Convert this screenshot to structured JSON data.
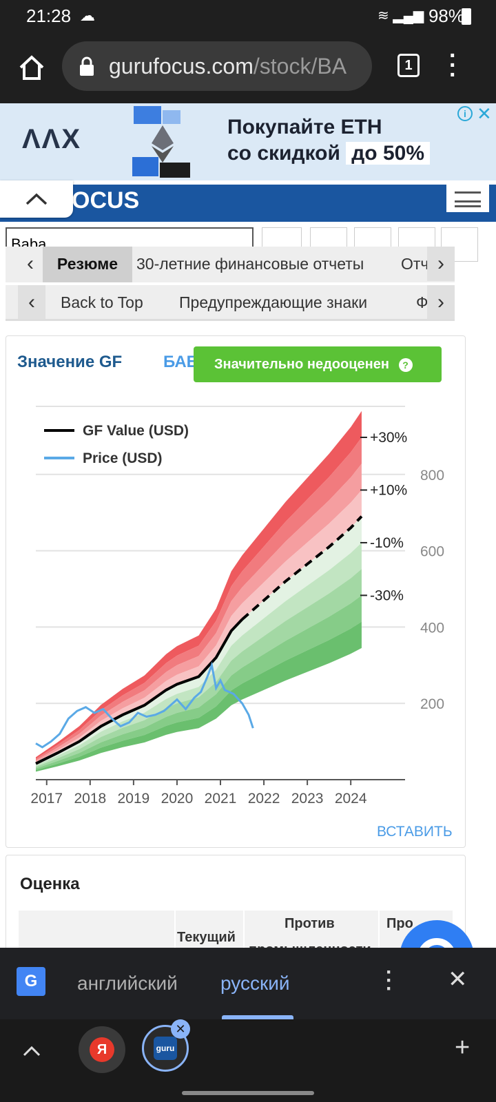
{
  "status": {
    "time": "21:28",
    "battery": "98%"
  },
  "browser": {
    "url_host": "gurufocus.com",
    "url_path": "/stock/BA",
    "tab_count": "1"
  },
  "ad": {
    "brand": "ΛΛX",
    "line1": "Покупайте ETH",
    "line2": "со скидкой",
    "highlight": "до 50%"
  },
  "site": {
    "logo_text": "OCUS",
    "search_value": "Baba"
  },
  "nav_primary": [
    "Резюме",
    "30-летние финансовые отчеты",
    "Отчет о"
  ],
  "nav_secondary": [
    "Back to Top",
    "Предупреждающие знаки",
    "Фина"
  ],
  "gf_card": {
    "title": "Значение GF",
    "ticker": "БАБ",
    "badge": "Значительно недооценен",
    "embed_label": "ВСТАВИТЬ"
  },
  "chart_data": {
    "type": "line",
    "legend": [
      "GF Value (USD)",
      "Price (USD)"
    ],
    "x_ticks": [
      "2017",
      "2018",
      "2019",
      "2020",
      "2021",
      "2022",
      "2023",
      "2024"
    ],
    "y_ticks": [
      200,
      400,
      600,
      800
    ],
    "band_labels": [
      "+30%",
      "+10%",
      "-10%",
      "-30%"
    ],
    "gf_value": {
      "x": [
        2016.75,
        2017.25,
        2017.75,
        2018.25,
        2018.75,
        2019.25,
        2019.75,
        2020.0,
        2020.5,
        2020.9,
        2021.25,
        2021.5,
        2022.0,
        2022.5,
        2023.0,
        2023.5,
        2024.0,
        2024.25
      ],
      "y": [
        42,
        70,
        100,
        140,
        170,
        195,
        235,
        250,
        270,
        320,
        390,
        420,
        470,
        520,
        565,
        610,
        660,
        690
      ],
      "projected_from": 2021.5
    },
    "price": {
      "x": [
        2016.75,
        2016.9,
        2017.1,
        2017.3,
        2017.5,
        2017.7,
        2017.9,
        2018.1,
        2018.3,
        2018.5,
        2018.7,
        2018.9,
        2019.1,
        2019.3,
        2019.5,
        2019.7,
        2019.9,
        2020.0,
        2020.2,
        2020.4,
        2020.55,
        2020.7,
        2020.8,
        2020.9,
        2021.0,
        2021.1,
        2021.3,
        2021.5,
        2021.65,
        2021.75
      ],
      "y": [
        95,
        85,
        100,
        120,
        160,
        180,
        190,
        175,
        185,
        160,
        140,
        150,
        175,
        165,
        170,
        180,
        200,
        210,
        185,
        215,
        230,
        270,
        300,
        240,
        260,
        235,
        225,
        200,
        170,
        135
      ]
    },
    "ylim": [
      0,
      900
    ],
    "xlim": [
      2016.75,
      2025.25
    ],
    "colors": {
      "gf": "#000000",
      "price": "#5aa9e6",
      "over": "#e9454b",
      "under": "#57b35e"
    }
  },
  "valuation": {
    "title": "Оценка",
    "headers": [
      "",
      "Текущий",
      "Против",
      "Про"
    ],
    "sub": "промышленности"
  },
  "translate": {
    "lang_from": "английский",
    "lang_to": "русский"
  },
  "bottom": {
    "y_label": "Я",
    "guru_label": "guru"
  }
}
